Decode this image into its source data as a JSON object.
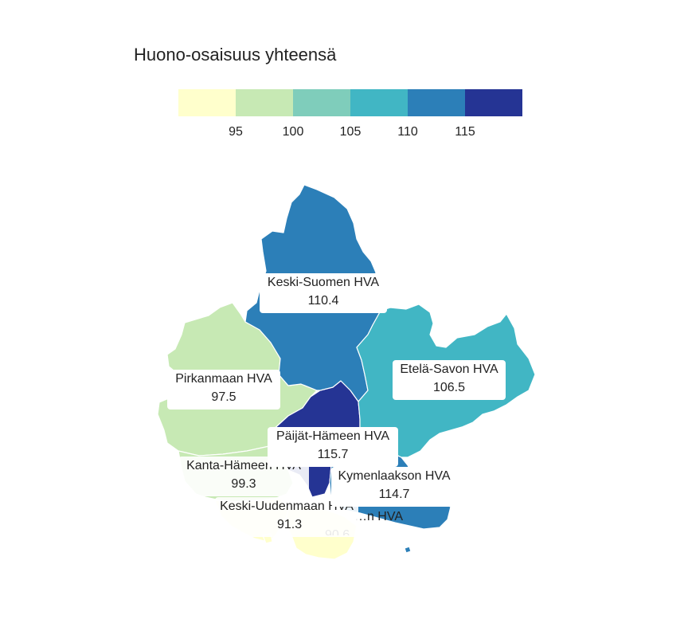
{
  "legend": {
    "title": "Huono-osaisuus yhteensä",
    "colors": [
      "#ffffcc",
      "#c7e9b4",
      "#7fcdbb",
      "#41b6c4",
      "#2c7fb8",
      "#253494"
    ],
    "ticks": [
      "95",
      "100",
      "105",
      "110",
      "115"
    ],
    "breaks": [
      95,
      100,
      105,
      110,
      115
    ]
  },
  "regions": [
    {
      "id": "keski-suomi",
      "name": "Keski-Suomen HVA",
      "value": "110.4",
      "color": "#2c7fb8"
    },
    {
      "id": "pirkanmaa",
      "name": "Pirkanmaan HVA",
      "value": "97.5",
      "color": "#c7e9b4"
    },
    {
      "id": "etela-savo",
      "name": "Etelä-Savon HVA",
      "value": "106.5",
      "color": "#41b6c4"
    },
    {
      "id": "paijat-hame",
      "name": "Päijät-Hämeen HVA",
      "value": "115.7",
      "color": "#253494"
    },
    {
      "id": "kanta-hame",
      "name": "Kanta-Hämeen HVA",
      "value": "99.3",
      "color": "#c7e9b4"
    },
    {
      "id": "kymenlaakso",
      "name": "Kymenlaakson HVA",
      "value": "114.7",
      "color": "#2c7fb8"
    },
    {
      "id": "keski-uusimaa",
      "name": "Keski-Uudenmaan HVA",
      "value": "91.3",
      "color": "#ffffcc"
    },
    {
      "id": "ita-uusimaa",
      "name": "…n HVA",
      "value": "90.6",
      "color": "#ffffcc"
    }
  ]
}
